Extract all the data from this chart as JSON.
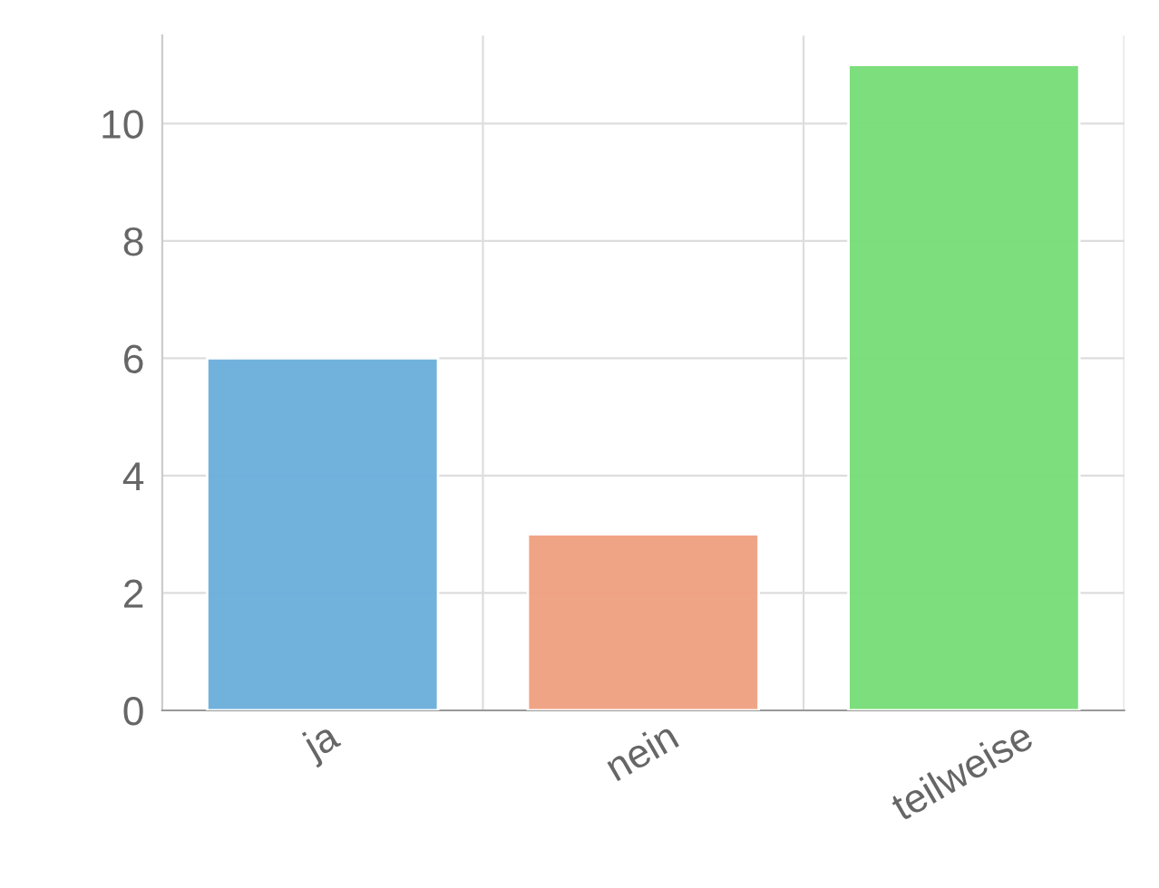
{
  "chart_data": {
    "type": "bar",
    "categories": [
      "ja",
      "nein",
      "teilweise"
    ],
    "values": [
      6,
      3,
      11
    ],
    "colors": [
      "#6aaedc",
      "#f0a080",
      "#77dd77"
    ],
    "ylim": [
      0,
      11.5
    ],
    "yticks": [
      0,
      2,
      4,
      6,
      8,
      10
    ],
    "grid": true,
    "legend": false
  }
}
